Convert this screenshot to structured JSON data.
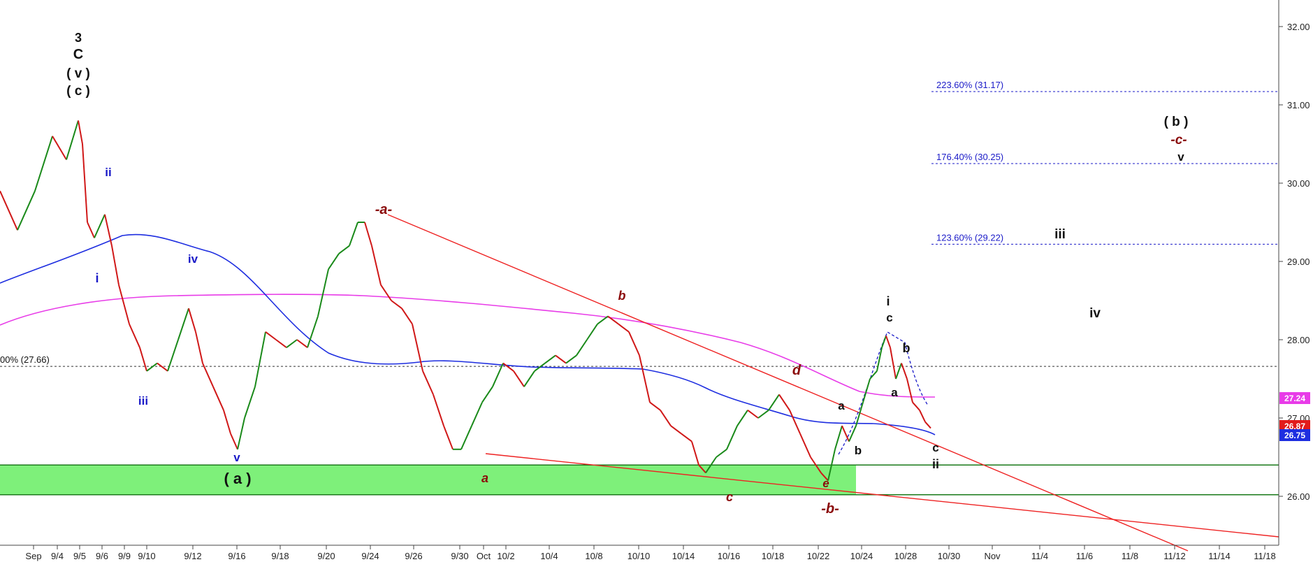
{
  "chart_data": {
    "type": "line",
    "ylim": [
      25.45,
      32.2
    ],
    "y_ticks": [
      "32.00",
      "31.00",
      "30.00",
      "29.00",
      "28.00",
      "27.00",
      "26.00"
    ],
    "x_labels": [
      "Sep",
      "9/4",
      "9/5",
      "9/6",
      "9/9",
      "9/10",
      "9/12",
      "9/16",
      "9/18",
      "9/20",
      "9/24",
      "9/26",
      "9/30",
      "Oct",
      "10/2",
      "10/4",
      "10/8",
      "10/10",
      "10/14",
      "10/16",
      "10/18",
      "10/22",
      "10/24",
      "10/28",
      "10/30",
      "Nov",
      "11/4",
      "11/6",
      "11/8",
      "11/12",
      "11/14",
      "11/18"
    ],
    "price_series": [
      [
        0,
        29.9
      ],
      [
        25,
        29.4
      ],
      [
        50,
        29.9
      ],
      [
        75,
        30.6
      ],
      [
        95,
        30.3
      ],
      [
        112,
        30.8
      ],
      [
        118,
        30.5
      ],
      [
        125,
        29.5
      ],
      [
        135,
        29.3
      ],
      [
        150,
        29.6
      ],
      [
        160,
        29.2
      ],
      [
        170,
        28.7
      ],
      [
        185,
        28.2
      ],
      [
        200,
        27.9
      ],
      [
        210,
        27.6
      ],
      [
        225,
        27.7
      ],
      [
        240,
        27.6
      ],
      [
        255,
        28.0
      ],
      [
        270,
        28.4
      ],
      [
        280,
        28.1
      ],
      [
        290,
        27.7
      ],
      [
        305,
        27.4
      ],
      [
        320,
        27.1
      ],
      [
        330,
        26.8
      ],
      [
        340,
        26.6
      ],
      [
        350,
        27.0
      ],
      [
        365,
        27.4
      ],
      [
        380,
        28.1
      ],
      [
        395,
        28.0
      ],
      [
        410,
        27.9
      ],
      [
        425,
        28.0
      ],
      [
        440,
        27.9
      ],
      [
        455,
        28.3
      ],
      [
        470,
        28.9
      ],
      [
        485,
        29.1
      ],
      [
        500,
        29.2
      ],
      [
        512,
        29.5
      ],
      [
        522,
        29.5
      ],
      [
        532,
        29.2
      ],
      [
        545,
        28.7
      ],
      [
        560,
        28.5
      ],
      [
        575,
        28.4
      ],
      [
        590,
        28.2
      ],
      [
        605,
        27.6
      ],
      [
        620,
        27.3
      ],
      [
        635,
        26.9
      ],
      [
        648,
        26.6
      ],
      [
        660,
        26.6
      ],
      [
        675,
        26.9
      ],
      [
        690,
        27.2
      ],
      [
        705,
        27.4
      ],
      [
        720,
        27.7
      ],
      [
        735,
        27.6
      ],
      [
        750,
        27.4
      ],
      [
        765,
        27.6
      ],
      [
        780,
        27.7
      ],
      [
        795,
        27.8
      ],
      [
        810,
        27.7
      ],
      [
        825,
        27.8
      ],
      [
        840,
        28.0
      ],
      [
        855,
        28.2
      ],
      [
        870,
        28.3
      ],
      [
        885,
        28.2
      ],
      [
        900,
        28.1
      ],
      [
        915,
        27.8
      ],
      [
        930,
        27.2
      ],
      [
        945,
        27.1
      ],
      [
        960,
        26.9
      ],
      [
        975,
        26.8
      ],
      [
        990,
        26.7
      ],
      [
        1000,
        26.4
      ],
      [
        1010,
        26.3
      ],
      [
        1025,
        26.5
      ],
      [
        1040,
        26.6
      ],
      [
        1055,
        26.9
      ],
      [
        1070,
        27.1
      ],
      [
        1085,
        27.0
      ],
      [
        1100,
        27.1
      ],
      [
        1115,
        27.3
      ],
      [
        1130,
        27.1
      ],
      [
        1145,
        26.8
      ],
      [
        1160,
        26.5
      ],
      [
        1175,
        26.3
      ],
      [
        1185,
        26.2
      ],
      [
        1195,
        26.6
      ],
      [
        1205,
        26.9
      ],
      [
        1215,
        26.7
      ],
      [
        1225,
        26.9
      ],
      [
        1235,
        27.2
      ],
      [
        1245,
        27.5
      ],
      [
        1255,
        27.6
      ],
      [
        1262,
        27.9
      ],
      [
        1268,
        28.05
      ],
      [
        1274,
        27.9
      ],
      [
        1282,
        27.5
      ],
      [
        1290,
        27.7
      ],
      [
        1298,
        27.5
      ],
      [
        1306,
        27.2
      ],
      [
        1316,
        27.1
      ],
      [
        1324,
        26.95
      ],
      [
        1332,
        26.87
      ]
    ],
    "fib_levels": [
      {
        "label": "223.60% (31.17)",
        "value": 31.17
      },
      {
        "label": "176.40% (30.25)",
        "value": 30.25
      },
      {
        "label": "123.60% (29.22)",
        "value": 29.22
      },
      {
        "label": "00% (27.66)",
        "value": 27.66
      }
    ],
    "price_badges": [
      {
        "text": "27.24",
        "value": 27.24,
        "color": "#e83ce8"
      },
      {
        "text": "26.87",
        "value": 26.87,
        "color": "#e21b1b"
      },
      {
        "text": "26.75",
        "value": 26.75,
        "color": "#1e2ee0"
      }
    ],
    "support_zone": {
      "top": 26.4,
      "bottom": 26.02,
      "label": "( a )"
    },
    "wave_labels": [
      {
        "text": "3",
        "color": "#111111",
        "bold": true,
        "italic": false
      },
      {
        "text": "C",
        "color": "#111111",
        "bold": true,
        "italic": false
      },
      {
        "text": "( v )",
        "color": "#111111",
        "bold": true,
        "italic": false
      },
      {
        "text": "( c )",
        "color": "#111111",
        "bold": true,
        "italic": false
      },
      {
        "text": "ii",
        "color": "#1a1ac8",
        "bold": true,
        "italic": false
      },
      {
        "text": "i",
        "color": "#1a1ac8",
        "bold": true,
        "italic": false
      },
      {
        "text": "iv",
        "color": "#1a1ac8",
        "bold": true,
        "italic": false
      },
      {
        "text": "iii",
        "color": "#1a1ac8",
        "bold": true,
        "italic": false
      },
      {
        "text": "v",
        "color": "#1a1ac8",
        "bold": true,
        "italic": false
      },
      {
        "text": "-a-",
        "color": "#8b0a0a",
        "bold": true,
        "italic": true
      },
      {
        "text": "a",
        "color": "#8b0a0a",
        "bold": true,
        "italic": true
      },
      {
        "text": "b",
        "color": "#8b0a0a",
        "bold": true,
        "italic": true
      },
      {
        "text": "c",
        "color": "#8b0a0a",
        "bold": true,
        "italic": true
      },
      {
        "text": "d",
        "color": "#8b0a0a",
        "bold": true,
        "italic": true
      },
      {
        "text": "e",
        "color": "#8b0a0a",
        "bold": true,
        "italic": true
      },
      {
        "text": "-b-",
        "color": "#8b0a0a",
        "bold": true,
        "italic": true
      },
      {
        "text": "a",
        "color": "#111111",
        "bold": true,
        "italic": false
      },
      {
        "text": "b",
        "color": "#111111",
        "bold": true,
        "italic": false
      },
      {
        "text": "i",
        "color": "#111111",
        "bold": true,
        "italic": false
      },
      {
        "text": "c",
        "color": "#111111",
        "bold": true,
        "italic": false
      },
      {
        "text": "b",
        "color": "#111111",
        "bold": true,
        "italic": false
      },
      {
        "text": "a",
        "color": "#111111",
        "bold": true,
        "italic": false
      },
      {
        "text": "c",
        "color": "#111111",
        "bold": true,
        "italic": false
      },
      {
        "text": "ii",
        "color": "#111111",
        "bold": true,
        "italic": false
      },
      {
        "text": "iii",
        "color": "#111111",
        "bold": true,
        "italic": false
      },
      {
        "text": "iv",
        "color": "#111111",
        "bold": true,
        "italic": false
      },
      {
        "text": "( b )",
        "color": "#111111",
        "bold": true,
        "italic": false
      },
      {
        "text": "-c-",
        "color": "#8b0a0a",
        "bold": true,
        "italic": true
      },
      {
        "text": "v",
        "color": "#111111",
        "bold": true,
        "italic": false
      }
    ],
    "colors": {
      "price_up": "#1a8a1a",
      "price_down": "#d01818",
      "ma_blue": "#1e2ee0",
      "ma_magenta": "#e83ce8",
      "trendline": "#ee2222",
      "fib": "#1a1ac8",
      "zone_fill": "#7ef07a",
      "zone_line": "#1a7a1a"
    }
  }
}
